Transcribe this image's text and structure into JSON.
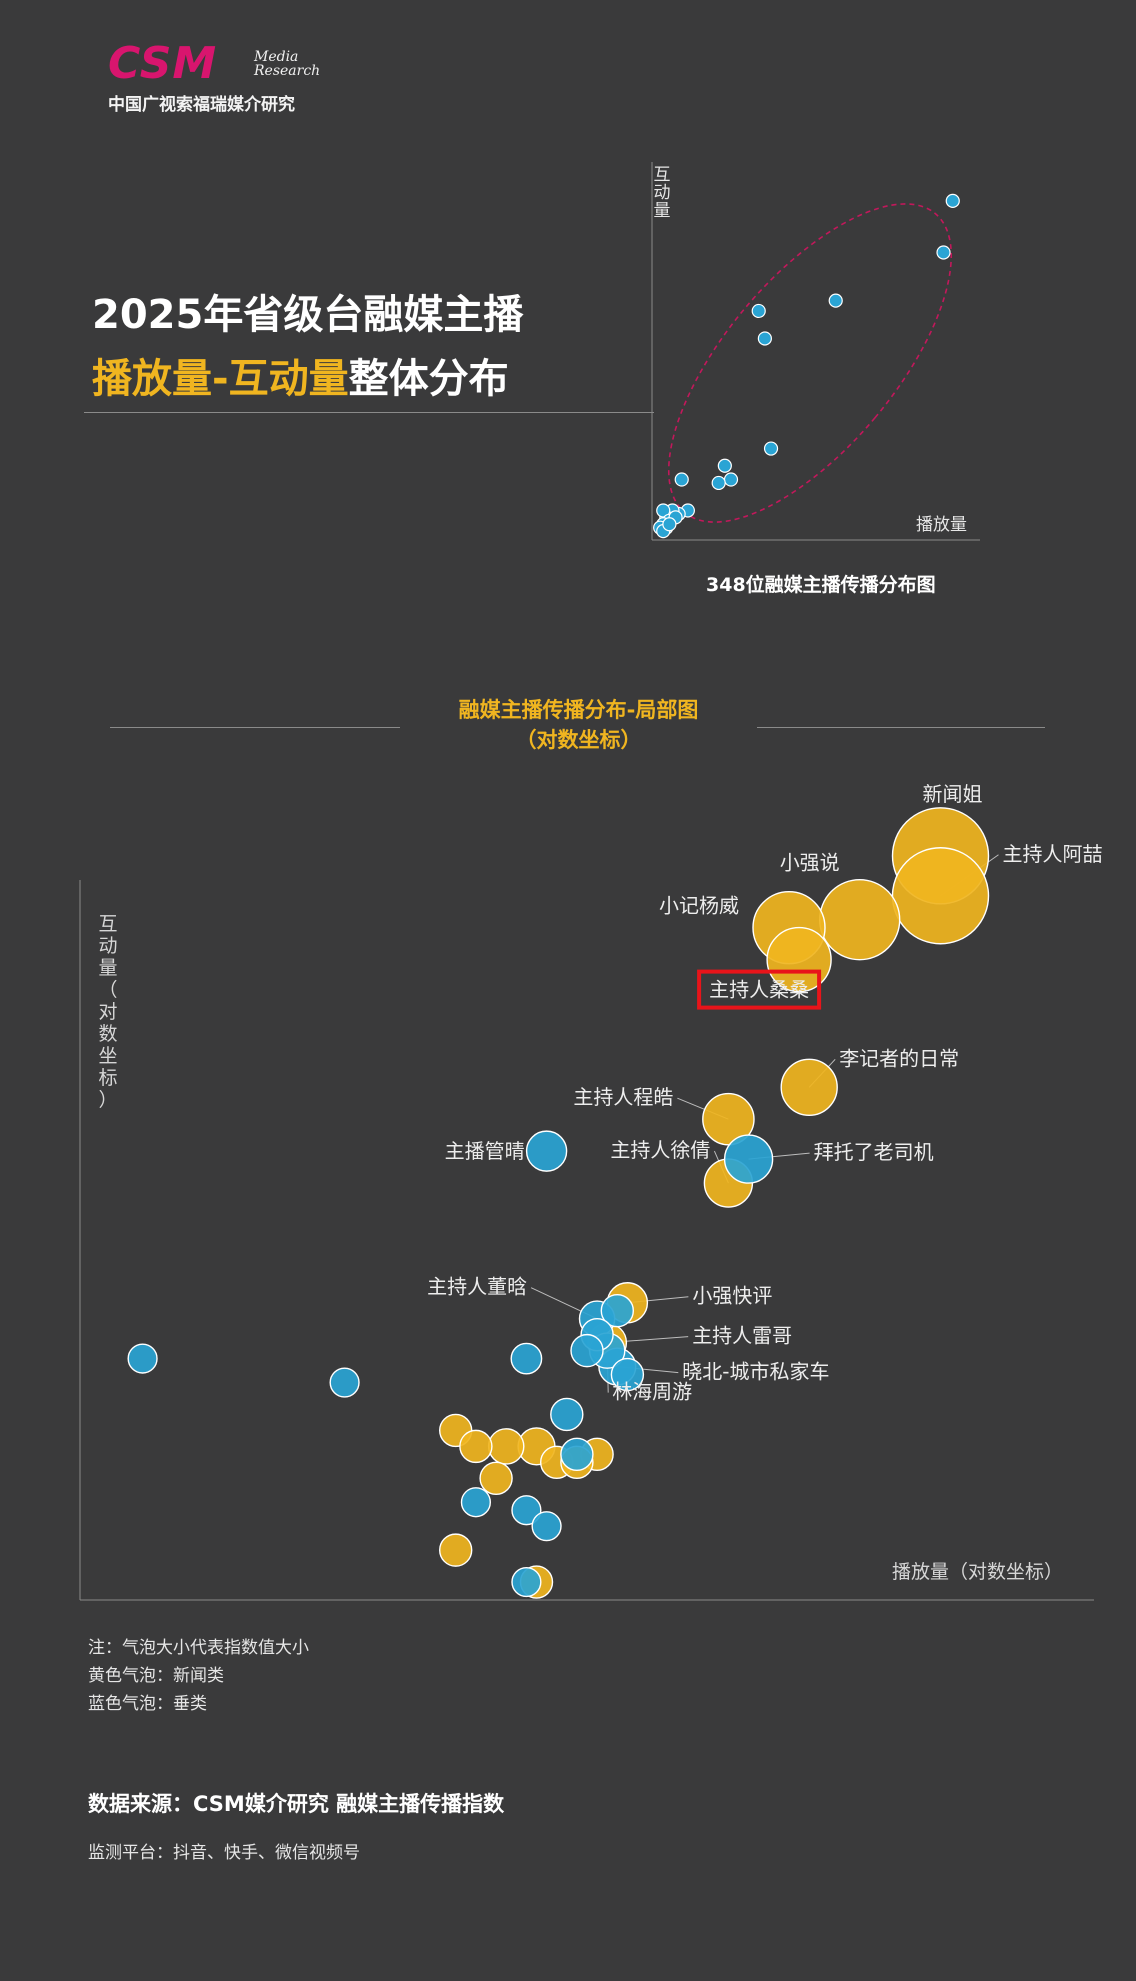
{
  "brand": {
    "logo_text": "CSM",
    "logo_media_line1": "Media",
    "logo_media_line2": "Research",
    "org_name": "中国广视索福瑞媒介研究"
  },
  "header": {
    "title_line1": "2025年省级台融媒主播",
    "title_line2_highlight": "播放量-互动量",
    "title_line2_rest": "整体分布"
  },
  "overview_chart": {
    "caption": "348位融媒主播传播分布图"
  },
  "section": {
    "title_line1": "融媒主播传播分布-局部图",
    "title_line2": "（对数坐标）"
  },
  "chart_data": [
    {
      "type": "scatter",
      "title": "348位融媒主播传播分布图",
      "xlabel": "播放量",
      "ylabel": "互动量",
      "xlim": [
        0,
        100
      ],
      "ylim": [
        0,
        100
      ],
      "grid": false,
      "points": [
        {
          "x": 97,
          "y": 98
        },
        {
          "x": 94,
          "y": 83
        },
        {
          "x": 59,
          "y": 69
        },
        {
          "x": 34,
          "y": 66
        },
        {
          "x": 36,
          "y": 58
        },
        {
          "x": 38,
          "y": 26
        },
        {
          "x": 23,
          "y": 21
        },
        {
          "x": 25,
          "y": 17
        },
        {
          "x": 21,
          "y": 16
        },
        {
          "x": 9,
          "y": 17
        },
        {
          "x": 11,
          "y": 8
        },
        {
          "x": 8,
          "y": 7
        },
        {
          "x": 6,
          "y": 8
        },
        {
          "x": 4,
          "y": 6
        },
        {
          "x": 3,
          "y": 8
        },
        {
          "x": 5,
          "y": 5
        },
        {
          "x": 7,
          "y": 6
        },
        {
          "x": 3,
          "y": 4
        },
        {
          "x": 4,
          "y": 3
        },
        {
          "x": 2,
          "y": 3
        },
        {
          "x": 3,
          "y": 2
        },
        {
          "x": 5,
          "y": 4
        }
      ],
      "annotation": "highlight ellipse around all points",
      "colors": {
        "point": "#2aa4d4",
        "ellipse": "#c2185b"
      }
    },
    {
      "type": "scatter",
      "title": "融媒主播传播分布-局部图（对数坐标）",
      "xlabel": "播放量（对数坐标）",
      "ylabel": "互动量（对数坐标）",
      "scale": "log",
      "xlim": [
        0,
        100
      ],
      "ylim": [
        0,
        100
      ],
      "legend": "bottom-left note",
      "series": [
        {
          "name": "黄色气泡：新闻类",
          "color": "#f0b520",
          "points": [
            {
              "label": "新闻姐",
              "x": 85,
              "y": 93,
              "size": 5
            },
            {
              "label": "主持人阿喆",
              "x": 85,
              "y": 88,
              "size": 5
            },
            {
              "label": "小强说",
              "x": 77,
              "y": 85,
              "size": 4
            },
            {
              "label": "小记杨威",
              "x": 70,
              "y": 84,
              "size": 3.5
            },
            {
              "label": "主持人桑桑",
              "x": 71,
              "y": 80,
              "size": 3
            },
            {
              "label": "李记者的日常",
              "x": 72,
              "y": 64,
              "size": 2.5
            },
            {
              "label": "主持人程皓",
              "x": 64,
              "y": 60,
              "size": 2.2
            },
            {
              "label": "主持人徐倩",
              "x": 64,
              "y": 52,
              "size": 2
            },
            {
              "label": "小强快评",
              "x": 54,
              "y": 37,
              "size": 1.5
            },
            {
              "label": "主持人雷哥",
              "x": 52,
              "y": 32,
              "size": 1.4
            },
            {
              "x": 37,
              "y": 21,
              "size": 1
            },
            {
              "x": 39,
              "y": 19,
              "size": 1
            },
            {
              "x": 42,
              "y": 19,
              "size": 1.2
            },
            {
              "x": 45,
              "y": 19,
              "size": 1.3
            },
            {
              "x": 47,
              "y": 17,
              "size": 1
            },
            {
              "x": 41,
              "y": 15,
              "size": 1
            },
            {
              "x": 51,
              "y": 18,
              "size": 1
            },
            {
              "x": 49,
              "y": 17,
              "size": 1
            },
            {
              "x": 37,
              "y": 6,
              "size": 1
            },
            {
              "x": 45,
              "y": 2,
              "size": 1
            }
          ]
        },
        {
          "name": "蓝色气泡：垂类",
          "color": "#2aa4d4",
          "points": [
            {
              "label": "拜托了老司机",
              "x": 66,
              "y": 55,
              "size": 2
            },
            {
              "label": "主播管晴",
              "x": 46,
              "y": 56,
              "size": 1.5
            },
            {
              "label": "主持人董晗",
              "x": 51,
              "y": 35,
              "size": 1.2
            },
            {
              "label": "晓北-城市私家车",
              "x": 53,
              "y": 29,
              "size": 1.3
            },
            {
              "label": "林海周游",
              "x": 52,
              "y": 31,
              "size": 1.2
            },
            {
              "x": 53,
              "y": 36,
              "size": 1
            },
            {
              "x": 51,
              "y": 33,
              "size": 1
            },
            {
              "x": 50,
              "y": 31,
              "size": 1
            },
            {
              "x": 54,
              "y": 28,
              "size": 1
            },
            {
              "x": 6,
              "y": 30,
              "size": 0.8
            },
            {
              "x": 26,
              "y": 27,
              "size": 0.8
            },
            {
              "x": 44,
              "y": 30,
              "size": 0.9
            },
            {
              "x": 48,
              "y": 23,
              "size": 1
            },
            {
              "x": 49,
              "y": 18,
              "size": 1
            },
            {
              "x": 39,
              "y": 12,
              "size": 0.8
            },
            {
              "x": 44,
              "y": 11,
              "size": 0.8
            },
            {
              "x": 46,
              "y": 9,
              "size": 0.8
            },
            {
              "x": 44,
              "y": 2,
              "size": 0.8
            }
          ]
        }
      ],
      "highlighted": "主持人桑桑"
    }
  ],
  "notes": {
    "line1": "注：气泡大小代表指数值大小",
    "line2": "黄色气泡：新闻类",
    "line3": "蓝色气泡：垂类"
  },
  "footer": {
    "source": "数据来源：CSM媒介研究  融媒主播传播指数",
    "platform": "监测平台：抖音、快手、微信视频号"
  }
}
